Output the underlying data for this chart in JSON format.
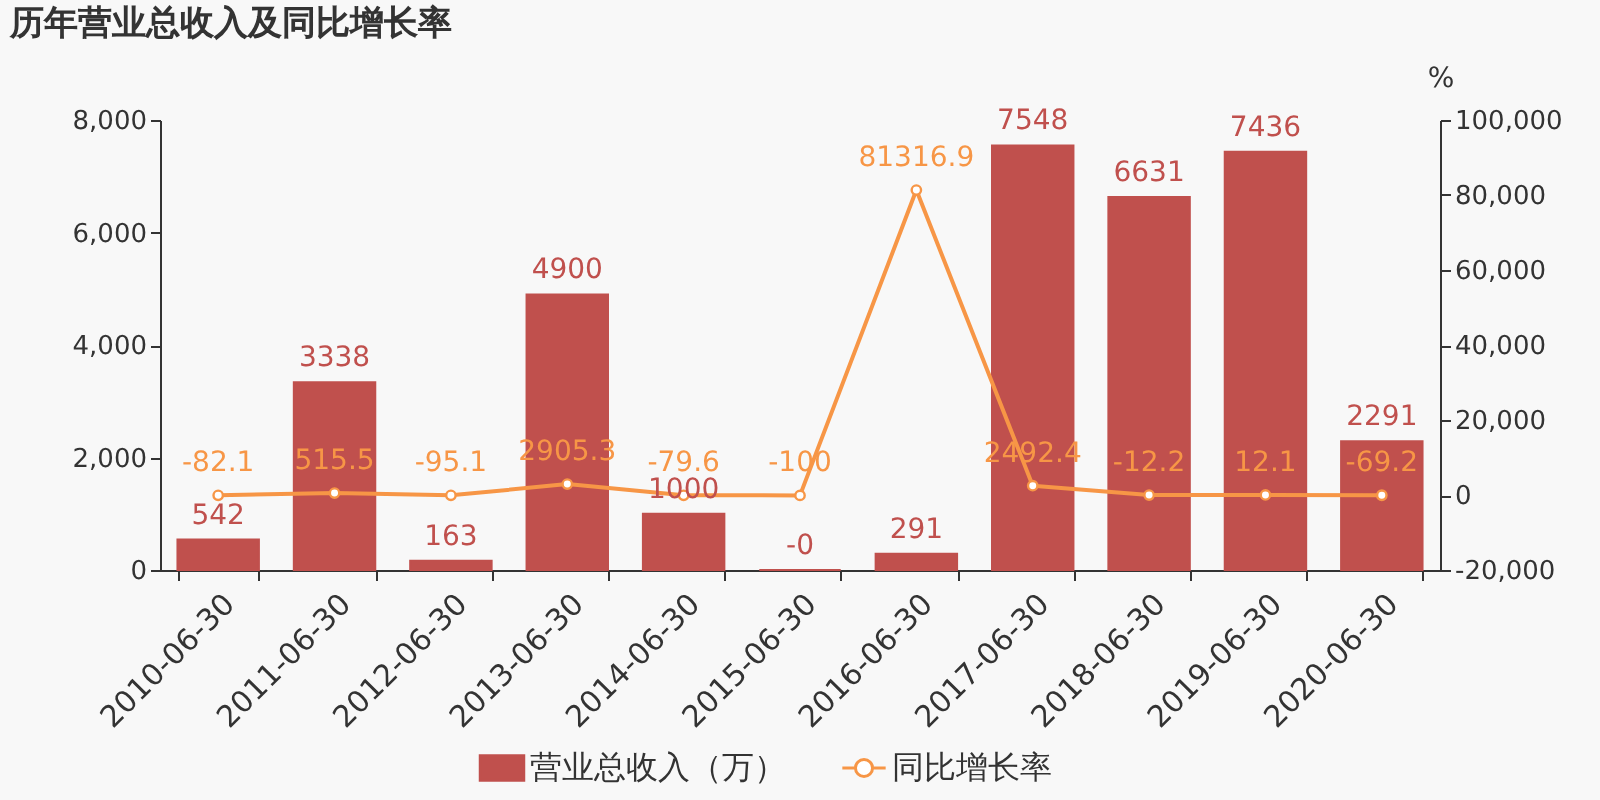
{
  "chart_data": {
    "type": "bar",
    "title": "历年营业总收入及同比增长率",
    "y2label": "%",
    "categories": [
      "2010-06-30",
      "2011-06-30",
      "2012-06-30",
      "2013-06-30",
      "2014-06-30",
      "2015-06-30",
      "2016-06-30",
      "2017-06-30",
      "2018-06-30",
      "2019-06-30",
      "2020-06-30"
    ],
    "series": [
      {
        "name": "营业总收入（万）",
        "color": "#c0504d",
        "values": [
          542,
          3338,
          163,
          4900,
          1000,
          0,
          291,
          7548,
          6631,
          7436,
          2291
        ],
        "value_labels": [
          "542",
          "3338",
          "163",
          "4900",
          "1000",
          "-0",
          "291",
          "7548",
          "6631",
          "7436",
          "2291"
        ]
      },
      {
        "name": "同比增长率",
        "type": "line",
        "axis": "y2",
        "color": "#f79646",
        "values": [
          -82.1,
          515.5,
          -95.1,
          2905.3,
          -79.6,
          -100,
          81316.9,
          2492.4,
          -12.2,
          12.1,
          -69.2
        ],
        "value_labels": [
          "-82.1",
          "515.5",
          "-95.1",
          "2905.3",
          "-79.6",
          "-100",
          "81316.9",
          "2492.4",
          "-12.2",
          "12.1",
          "-69.2"
        ]
      }
    ],
    "ylim": [
      0,
      8000
    ],
    "yticks": [
      0,
      {
        "value": 2000,
        "label": "2,000"
      },
      {
        "value": 4000,
        "label": "4,000"
      },
      {
        "value": 6000,
        "label": "6,000"
      },
      {
        "value": 8000,
        "label": "8,000"
      }
    ],
    "y2lim": [
      -20000,
      100000
    ],
    "y2ticks": [
      {
        "value": -20000,
        "label": "-20,000"
      },
      0,
      {
        "value": 20000,
        "label": "20,000"
      },
      {
        "value": 40000,
        "label": "40,000"
      },
      {
        "value": 60000,
        "label": "60,000"
      },
      {
        "value": 80000,
        "label": "80,000"
      },
      {
        "value": 100000,
        "label": "100,000"
      }
    ],
    "marker": "circle",
    "legend": "bottom"
  }
}
